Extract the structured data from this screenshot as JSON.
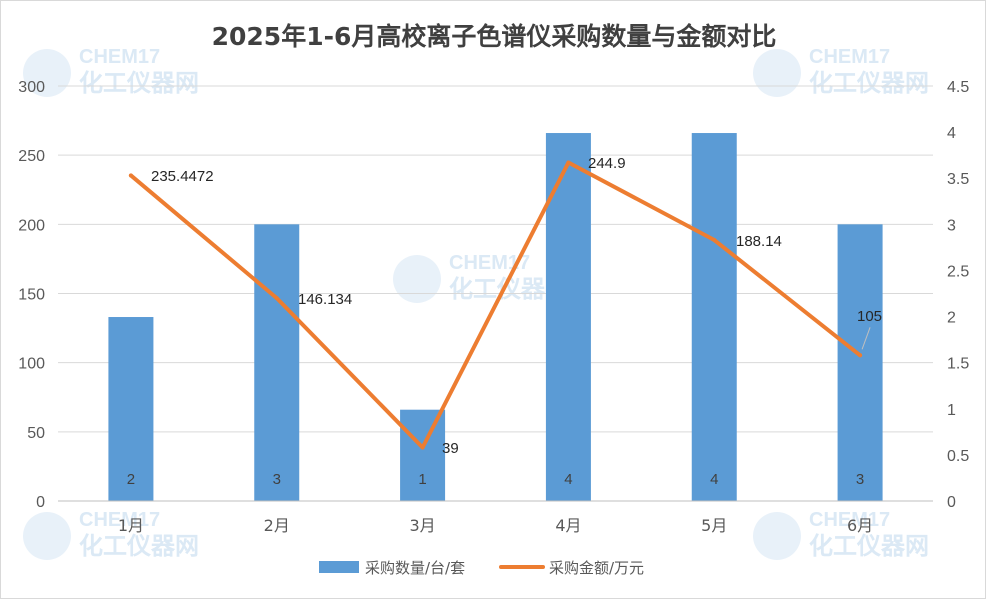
{
  "watermark": {
    "brand": "CHEM17",
    "name": "化工仪器网"
  },
  "chart_data": {
    "type": "bar+line",
    "title": "2025年1-6月高校离子色谱仪采购数量与金额对比",
    "categories": [
      "1月",
      "2月",
      "3月",
      "4月",
      "5月",
      "6月"
    ],
    "series": [
      {
        "name": "采购数量/台/套",
        "type": "bar",
        "axis": "left",
        "color": "#5b9bd5",
        "values": [
          133,
          200,
          66,
          266,
          266,
          200
        ],
        "labels": [
          "2",
          "3",
          "1",
          "4",
          "4",
          "3"
        ]
      },
      {
        "name": "采购金额/万元",
        "type": "line",
        "axis": "right",
        "color": "#ed7d31",
        "values": [
          3.53,
          2.2,
          0.58,
          3.67,
          2.83,
          1.58
        ],
        "labels": [
          "235.4472",
          "146.134",
          "39",
          "244.9",
          "188.14",
          "105"
        ]
      }
    ],
    "y_left": {
      "min": 0,
      "max": 300,
      "ticks": [
        "0",
        "50",
        "100",
        "150",
        "200",
        "250",
        "300"
      ]
    },
    "y_right": {
      "min": 0,
      "max": 4.5,
      "ticks": [
        "0",
        "0.5",
        "1",
        "1.5",
        "2",
        "2.5",
        "3",
        "3.5",
        "4",
        "4.5"
      ]
    },
    "grid": true,
    "legend": "bottom"
  }
}
